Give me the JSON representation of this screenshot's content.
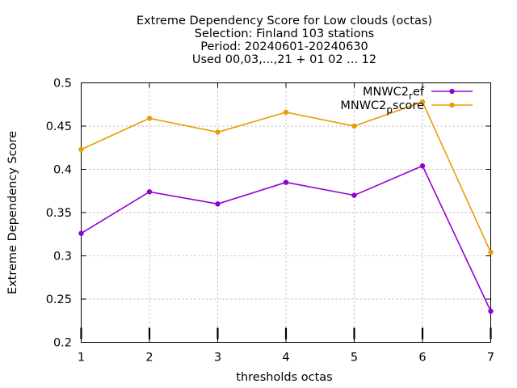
{
  "chart_data": {
    "type": "line",
    "title_lines": [
      "Extreme Dependency Score  for Low clouds (octas)",
      "Selection: Finland    103 stations",
      "Period: 20240601-20240630",
      "Used 00,03,...,21 + 01 02 ... 12"
    ],
    "xlabel": "thresholds octas",
    "ylabel": "Extreme Dependency Score",
    "x": [
      1,
      2,
      3,
      4,
      5,
      6,
      7
    ],
    "xlim": [
      1,
      7
    ],
    "ylim": [
      0.2,
      0.5
    ],
    "xticks": [
      "1",
      "2",
      "3",
      "4",
      "5",
      "6",
      "7"
    ],
    "yticks": [
      "0.2",
      "0.25",
      "0.3",
      "0.35",
      "0.4",
      "0.45",
      "0.5"
    ],
    "grid": true,
    "legend_position": "top-right",
    "series": [
      {
        "name": "MNWC2_ref",
        "name_main": "MNWC2",
        "name_sub": "r",
        "name_rest": "ef",
        "color": "#9400d3",
        "values": [
          0.326,
          0.374,
          0.36,
          0.385,
          0.37,
          0.404,
          0.236
        ]
      },
      {
        "name": "MNWC2_pscore",
        "name_main": "MNWC2",
        "name_sub": "p",
        "name_rest": "score",
        "color": "#e69f00",
        "values": [
          0.423,
          0.459,
          0.443,
          0.466,
          0.45,
          0.478,
          0.304
        ]
      }
    ]
  }
}
